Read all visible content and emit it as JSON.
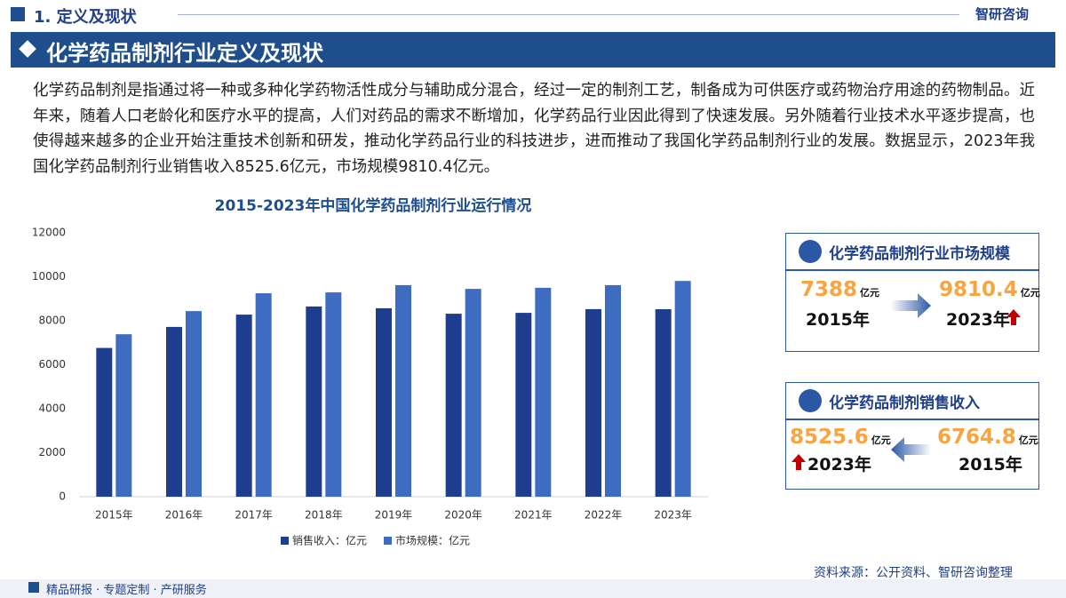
{
  "header": {
    "section": "1. 定义及现状",
    "logo": "智研咨询"
  },
  "title": "化学药品制剂行业定义及现状",
  "paragraph": "化学药品制剂是指通过将一种或多种化学药物活性成分与辅助成分混合，经过一定的制剂工艺，制备成为可供医疗或药物治疗用途的药物制品。近年来，随着人口老龄化和医疗水平的提高，人们对药品的需求不断增加，化学药品行业因此得到了快速发展。另外随着行业技术水平逐步提高，也使得越来越多的企业开始注重技术创新和研发，推动化学药品行业的科技进步，进而推动了我国化学药品制剂行业的发展。数据显示，2023年我国化学药品制剂行业销售收入8525.6亿元，市场规模9810.4亿元。",
  "chart_data": {
    "type": "bar",
    "title": "2015-2023年中国化学药品制剂行业运行情况",
    "categories": [
      "2015年",
      "2016年",
      "2017年",
      "2018年",
      "2019年",
      "2020年",
      "2021年",
      "2022年",
      "2023年"
    ],
    "series": [
      {
        "name": "销售收入：亿元",
        "color": "#1e3d8f",
        "values": [
          6764.8,
          7720,
          8280,
          8650,
          8570,
          8320,
          8360,
          8530,
          8525.6
        ]
      },
      {
        "name": "市场规模：亿元",
        "color": "#3e6cc0",
        "values": [
          7388,
          8440,
          9250,
          9290,
          9620,
          9450,
          9500,
          9620,
          9810.4
        ]
      }
    ],
    "ylim": [
      0,
      12000
    ],
    "yticks": [
      0,
      2000,
      4000,
      6000,
      8000,
      10000,
      12000
    ],
    "grid": false,
    "legend": "bottom"
  },
  "cards": [
    {
      "title": "化学药品制剂行业市场规模",
      "items": [
        {
          "value": 7388,
          "unit": "亿元",
          "year": "2015年"
        },
        {
          "value": 9810.4,
          "unit": "亿元",
          "year": "2023年"
        }
      ]
    },
    {
      "title": "化学药品制剂销售收入",
      "items": [
        {
          "value": 8525.6,
          "unit": "亿元",
          "year": "2023年"
        },
        {
          "value": 6764.8,
          "unit": "亿元",
          "year": "2015年"
        }
      ]
    }
  ],
  "footer": {
    "tagline": "精品研报 · 专题定制 · 产研服务",
    "source": "资料来源：公开资料、智研咨询整理"
  }
}
